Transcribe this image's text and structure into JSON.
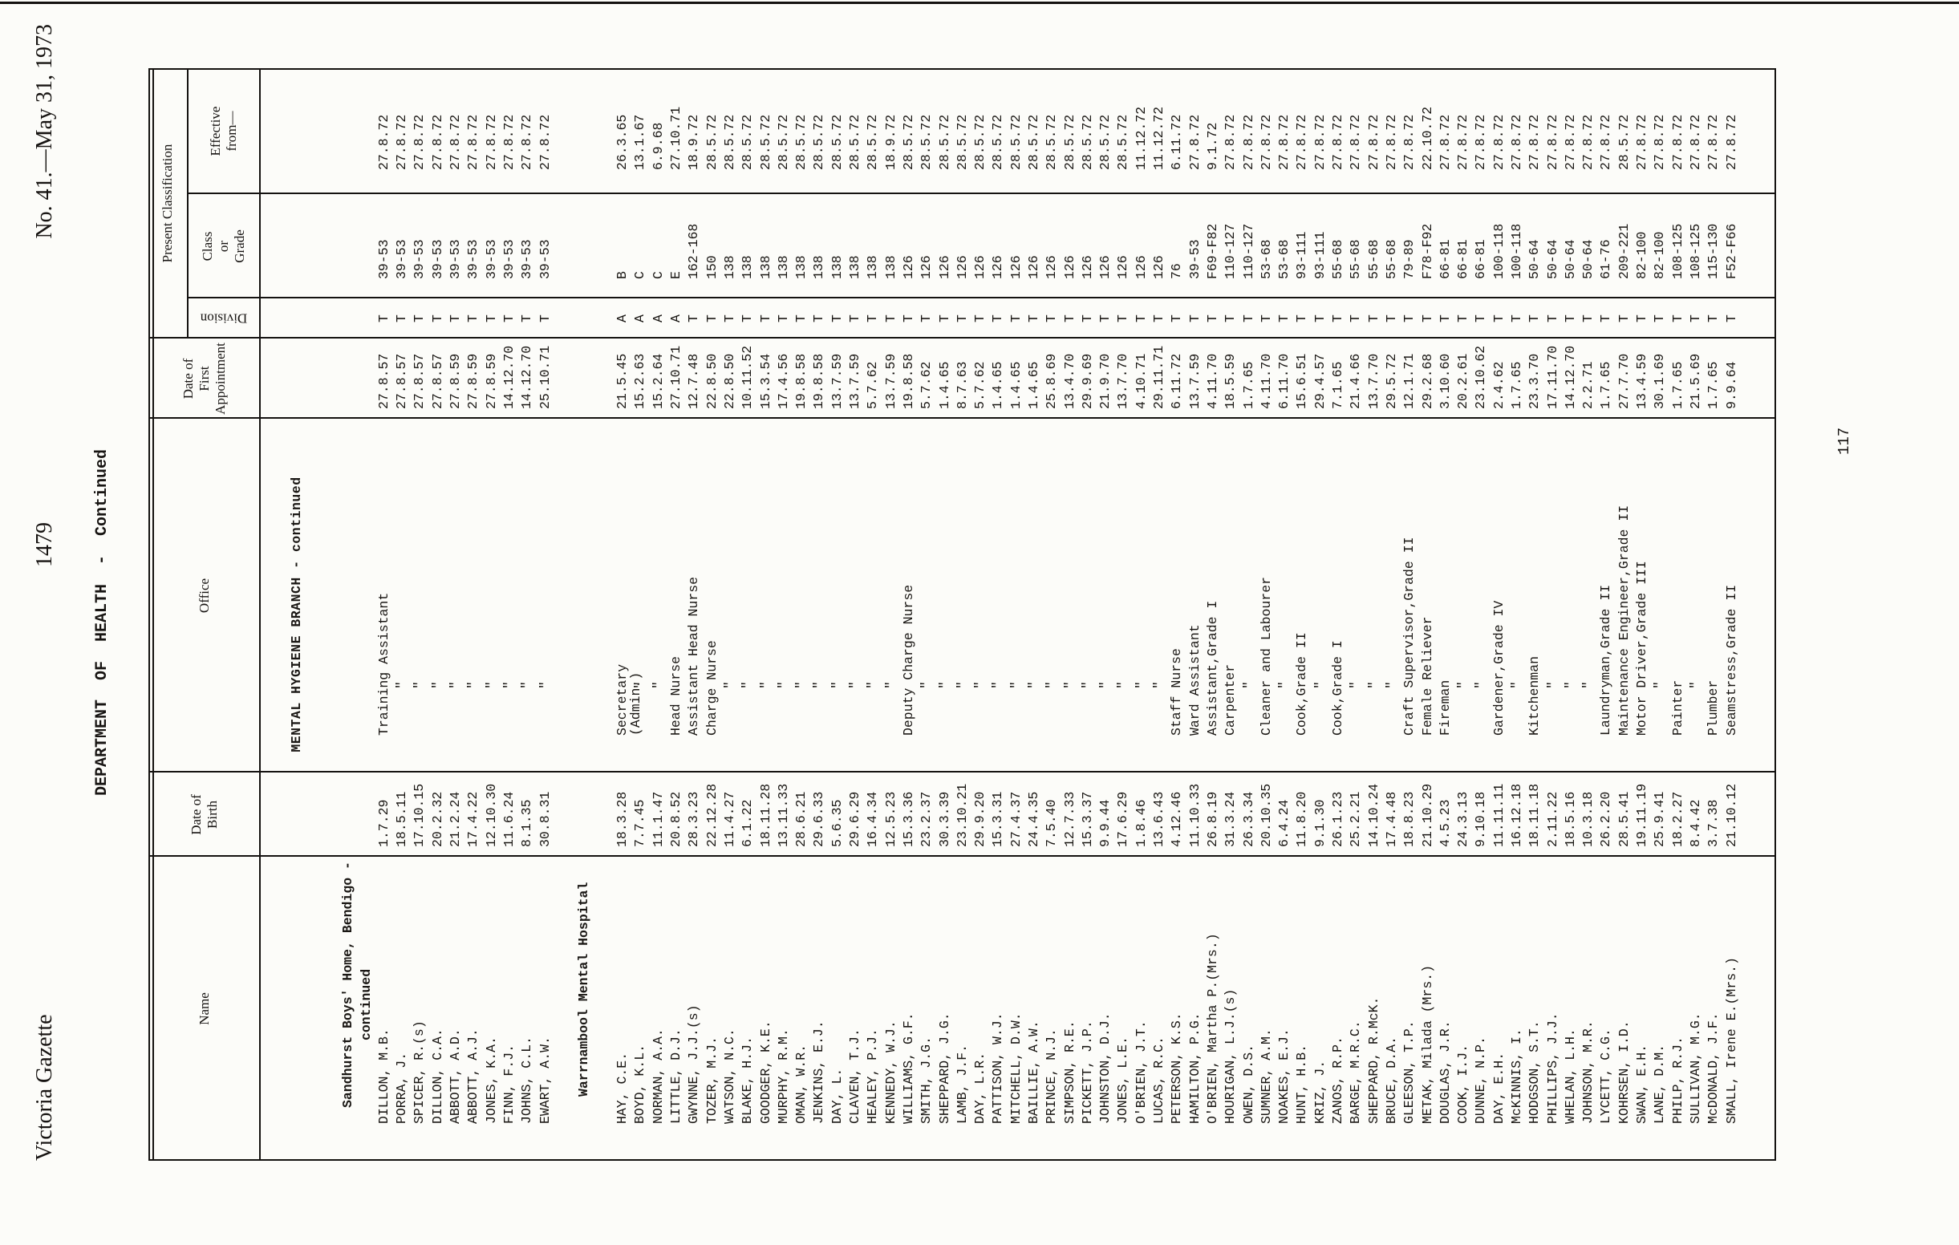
{
  "page": {
    "masthead_left": "Victoria Gazette",
    "masthead_page": "1479",
    "masthead_right": "No. 41.—May 31, 1973",
    "title": "DEPARTMENT  OF  HEALTH  -  Continued",
    "branch_heading": "MENTAL HYGIENE BRANCH - continued",
    "folio_number": "117"
  },
  "table": {
    "headers": {
      "name": "Name",
      "dob": "Date of\nBirth",
      "office": "Office",
      "first_appointment": "Date of\nFirst\nAppointment",
      "present_classification": "Present Classification",
      "division": "Division",
      "class_or_grade": "Class\nor\nGrade",
      "effective_from": "Effective\nfrom—"
    },
    "columns": [
      "name",
      "dob",
      "office",
      "first_appointment",
      "division",
      "class_or_grade",
      "effective_from"
    ],
    "sections": [
      {
        "heading_lines": [
          "Sandhurst Boys' Home, Bendigo -",
          "continued"
        ],
        "rows": [
          [
            "DILLON, M.B.",
            "1.7.29",
            "Training Assistant",
            "27.8.57",
            "T",
            "39-53",
            "27.8.72"
          ],
          [
            "PORRA, J.",
            "18.5.11",
            "\"",
            "27.8.57",
            "T",
            "39-53",
            "27.8.72"
          ],
          [
            "SPICER, R.(s)",
            "17.10.15",
            "\"",
            "27.8.57",
            "T",
            "39-53",
            "27.8.72"
          ],
          [
            "DILLON, C.A.",
            "20.2.32",
            "\"",
            "27.8.57",
            "T",
            "39-53",
            "27.8.72"
          ],
          [
            "ABBOTT, A.D.",
            "21.2.24",
            "\"",
            "27.8.59",
            "T",
            "39-53",
            "27.8.72"
          ],
          [
            "ABBOTT, A.J.",
            "17.4.22",
            "\"",
            "27.8.59",
            "T",
            "39-53",
            "27.8.72"
          ],
          [
            "JONES, K.A.",
            "12.10.30",
            "\"",
            "27.8.59",
            "T",
            "39-53",
            "27.8.72"
          ],
          [
            "FINN, F.J.",
            "11.6.24",
            "\"",
            "14.12.70",
            "T",
            "39-53",
            "27.8.72"
          ],
          [
            "JOHNS, C.L.",
            "8.1.35",
            "\"",
            "14.12.70",
            "T",
            "39-53",
            "27.8.72"
          ],
          [
            "EWART, A.W.",
            "30.8.31",
            "\"",
            "25.10.71",
            "T",
            "39-53",
            "27.8.72"
          ]
        ]
      },
      {
        "heading_lines": [
          "Warrnambool Mental Hospital"
        ],
        "rows": [
          [
            "HAY, C.E.",
            "18.3.28",
            "Secretary\n(Admin.)",
            "21.5.45",
            "A",
            "B",
            "26.3.65"
          ],
          [
            "BOYD, K.L.",
            "7.7.45",
            "\"",
            "15.2.63",
            "A",
            "C",
            "13.1.67"
          ],
          [
            "NORMAN, A.A.",
            "11.1.47",
            "\"",
            "15.2.64",
            "A",
            "C",
            "6.9.68"
          ],
          [
            "LITTLE, D.J.",
            "20.8.52",
            "Head Nurse",
            "27.10.71",
            "A",
            "E",
            "27.10.71"
          ],
          [
            "GWYNNE, J.J.(s)",
            "28.3.23",
            "Assistant Head Nurse",
            "12.7.48",
            "T",
            "162-168",
            "18.9.72"
          ],
          [
            "TOZER, M.J.",
            "22.12.28",
            "Charge Nurse",
            "22.8.50",
            "T",
            "150",
            "28.5.72"
          ],
          [
            "WATSON, N.C.",
            "11.4.27",
            "\"",
            "22.8.50",
            "T",
            "138",
            "28.5.72"
          ],
          [
            "BLAKE, H.J.",
            "6.1.22",
            "\"",
            "10.11.52",
            "T",
            "138",
            "28.5.72"
          ],
          [
            "GOODGER, K.E.",
            "18.11.28",
            "\"",
            "15.3.54",
            "T",
            "138",
            "28.5.72"
          ],
          [
            "MURPHY, R.M.",
            "13.11.33",
            "\"",
            "17.4.56",
            "T",
            "138",
            "28.5.72"
          ],
          [
            "OMAN, W.R.",
            "28.6.21",
            "\"",
            "19.8.58",
            "T",
            "138",
            "28.5.72"
          ],
          [
            "JENKINS, E.J.",
            "29.6.33",
            "\"",
            "19.8.58",
            "T",
            "138",
            "28.5.72"
          ],
          [
            "DAY, L.",
            "5.6.35",
            "\"",
            "13.7.59",
            "T",
            "138",
            "28.5.72"
          ],
          [
            "CLAVEN, T.J.",
            "29.6.29",
            "\"",
            "13.7.59",
            "T",
            "138",
            "28.5.72"
          ],
          [
            "HEALEY, P.J.",
            "16.4.34",
            "\"",
            "5.7.62",
            "T",
            "138",
            "28.5.72"
          ],
          [
            "KENNEDY, W.J.",
            "12.5.23",
            "\"",
            "13.7.59",
            "T",
            "138",
            "18.9.72"
          ],
          [
            "WILLIAMS, G.F.",
            "15.3.36",
            "Deputy Charge Nurse",
            "19.8.58",
            "T",
            "126",
            "28.5.72"
          ],
          [
            "SMITH, J.G.",
            "23.2.37",
            "\"",
            "5.7.62",
            "T",
            "126",
            "28.5.72"
          ],
          [
            "SHEPPARD, J.G.",
            "30.3.39",
            "\"",
            "1.4.65",
            "T",
            "126",
            "28.5.72"
          ],
          [
            "LAMB, J.F.",
            "23.10.21",
            "\"",
            "8.7.63",
            "T",
            "126",
            "28.5.72"
          ],
          [
            "DAY, L.R.",
            "29.9.20",
            "\"",
            "5.7.62",
            "T",
            "126",
            "28.5.72"
          ],
          [
            "PATTISON, W.J.",
            "15.3.31",
            "\"",
            "1.4.65",
            "T",
            "126",
            "28.5.72"
          ],
          [
            "MITCHELL, D.W.",
            "27.4.37",
            "\"",
            "1.4.65",
            "T",
            "126",
            "28.5.72"
          ],
          [
            "BAILLIE, A.W.",
            "24.4.35",
            "\"",
            "1.4.65",
            "T",
            "126",
            "28.5.72"
          ],
          [
            "PRINCE, N.J.",
            "7.5.40",
            "\"",
            "25.8.69",
            "T",
            "126",
            "28.5.72"
          ],
          [
            "SIMPSON, R.E.",
            "12.7.33",
            "\"",
            "13.4.70",
            "T",
            "126",
            "28.5.72"
          ],
          [
            "PICKETT, J.P.",
            "15.3.37",
            "\"",
            "29.9.69",
            "T",
            "126",
            "28.5.72"
          ],
          [
            "JOHNSTON, D.J.",
            "9.9.44",
            "\"",
            "21.9.70",
            "T",
            "126",
            "28.5.72"
          ],
          [
            "JONES, L.E.",
            "17.6.29",
            "\"",
            "13.7.70",
            "T",
            "126",
            "28.5.72"
          ],
          [
            "O'BRIEN, J.T.",
            "1.8.46",
            "\"",
            "4.10.71",
            "T",
            "126",
            "11.12.72"
          ],
          [
            "LUCAS, R.C.",
            "13.6.43",
            "\"",
            "29.11.71",
            "T",
            "126",
            "11.12.72"
          ],
          [
            "PETERSON, K.S.",
            "4.12.46",
            "Staff Nurse",
            "6.11.72",
            "T",
            "76",
            "6.11.72"
          ],
          [
            "HAMILTON, P.G.",
            "11.10.33",
            "Ward Assistant",
            "13.7.59",
            "T",
            "39-53",
            "27.8.72"
          ],
          [
            "O'BRIEN, Martha P.(Mrs.)",
            "26.8.19",
            "Assistant,Grade I",
            "4.11.70",
            "T",
            "F69-F82",
            "9.1.72"
          ],
          [
            "HOURIGAN, L.J.(s)",
            "31.3.24",
            "Carpenter",
            "18.5.59",
            "T",
            "110-127",
            "27.8.72"
          ],
          [
            "OWEN, D.S.",
            "26.3.34",
            "\"",
            "1.7.65",
            "T",
            "110-127",
            "27.8.72"
          ],
          [
            "SUMNER, A.M.",
            "20.10.35",
            "Cleaner and Labourer",
            "4.11.70",
            "T",
            "53-68",
            "27.8.72"
          ],
          [
            "NOAKES, E.J.",
            "6.4.24",
            "\"",
            "6.11.70",
            "T",
            "53-68",
            "27.8.72"
          ],
          [
            "HUNT, H.B.",
            "11.8.20",
            "Cook,Grade II",
            "15.6.51",
            "T",
            "93-111",
            "27.8.72"
          ],
          [
            "KRIZ, J.",
            "9.1.30",
            "\"",
            "29.4.57",
            "T",
            "93-111",
            "27.8.72"
          ],
          [
            "ZANOS, R.P.",
            "26.1.23",
            "Cook,Grade I",
            "7.1.65",
            "T",
            "55-68",
            "27.8.72"
          ],
          [
            "BARGE, M.R.C.",
            "25.2.21",
            "\"",
            "21.4.66",
            "T",
            "55-68",
            "27.8.72"
          ],
          [
            "SHEPPARD, R.McK.",
            "14.10.24",
            "\"",
            "13.7.70",
            "T",
            "55-68",
            "27.8.72"
          ],
          [
            "BRUCE, D.A.",
            "17.4.48",
            "\"",
            "29.5.72",
            "T",
            "55-68",
            "27.8.72"
          ],
          [
            "GLEESON, T.P.",
            "18.8.23",
            "Craft Supervisor,Grade II",
            "12.1.71",
            "T",
            "79-89",
            "27.8.72"
          ],
          [
            "METAK, Milada (Mrs.)",
            "21.10.29",
            "Female Reliever",
            "29.2.68",
            "T",
            "F78-F92",
            "22.10.72"
          ],
          [
            "DOUGLAS, J.R.",
            "4.5.23",
            "Fireman",
            "3.10.60",
            "T",
            "66-81",
            "27.8.72"
          ],
          [
            "COOK, I.J.",
            "24.3.13",
            "\"",
            "20.2.61",
            "T",
            "66-81",
            "27.8.72"
          ],
          [
            "DUNNE, N.P.",
            "9.10.18",
            "\"",
            "23.10.62",
            "T",
            "66-81",
            "27.8.72"
          ],
          [
            "DAY, E.H.",
            "11.11.11",
            "Gardener,Grade IV",
            "2.4.62",
            "T",
            "100-118",
            "27.8.72"
          ],
          [
            "McKINNIS, I.",
            "16.12.18",
            "\"",
            "1.7.65",
            "T",
            "100-118",
            "27.8.72"
          ],
          [
            "HODGSON, S.T.",
            "18.11.18",
            "Kitchenman",
            "23.3.70",
            "T",
            "50-64",
            "27.8.72"
          ],
          [
            "PHILLIPS, J.J.",
            "2.11.22",
            "\"",
            "17.11.70",
            "T",
            "50-64",
            "27.8.72"
          ],
          [
            "WHELAN, L.H.",
            "18.5.16",
            "\"",
            "14.12.70",
            "T",
            "50-64",
            "27.8.72"
          ],
          [
            "JOHNSON, M.R.",
            "10.3.18",
            "\"",
            "2.2.71",
            "T",
            "50-64",
            "27.8.72"
          ],
          [
            "LYCETT, C.G.",
            "26.2.20",
            "Laundryman,Grade II",
            "1.7.65",
            "T",
            "61-76",
            "27.8.72"
          ],
          [
            "KOHRSEN, I.D.",
            "28.5.41",
            "Maintenance Engineer,Grade II",
            "27.7.70",
            "T",
            "209-221",
            "28.5.72"
          ],
          [
            "SWAN, E.H.",
            "19.11.19",
            "Motor Driver,Grade III",
            "13.4.59",
            "T",
            "82-100",
            "27.8.72"
          ],
          [
            "LANE, D.M.",
            "25.9.41",
            "\"",
            "30.1.69",
            "T",
            "82-100",
            "27.8.72"
          ],
          [
            "PHILP, R.J.",
            "18.2.27",
            "Painter",
            "1.7.65",
            "T",
            "108-125",
            "27.8.72"
          ],
          [
            "SULLIVAN, M.G.",
            "8.4.42",
            "\"",
            "21.5.69",
            "T",
            "108-125",
            "27.8.72"
          ],
          [
            "McDONALD, J.F.",
            "3.7.38",
            "Plumber",
            "1.7.65",
            "T",
            "115-130",
            "27.8.72"
          ],
          [
            "SMALL, Irene E.(Mrs.)",
            "21.10.12",
            "Seamstress,Grade II",
            "9.9.64",
            "T",
            "F52-F66",
            "27.8.72"
          ]
        ]
      }
    ]
  }
}
